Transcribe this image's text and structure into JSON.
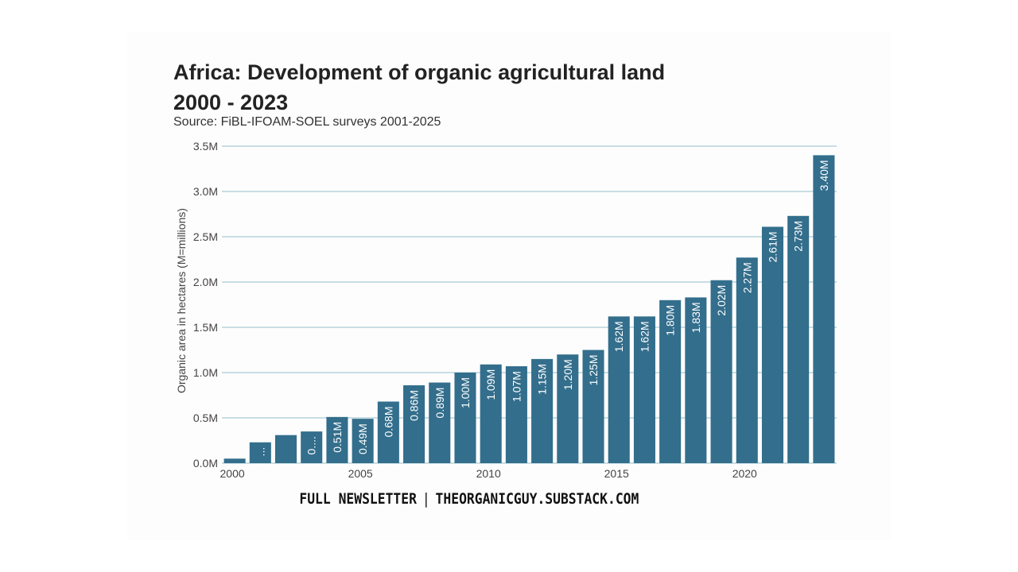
{
  "page": {
    "title_line1": "Africa: Development of organic agricultural land",
    "title_line2": "2000 - 2023",
    "subtitle": "Source: FiBL-IFOAM-SOEL surveys 2001-2025",
    "footer_left": "FULL NEWSLETTER",
    "footer_sep": "|",
    "footer_right": "THEORGANICGUY.SUBSTACK.COM"
  },
  "colors": {
    "bar": "#336e8c",
    "grid": "#a9cbd6",
    "axis_text": "#444444",
    "bar_label": "#ffffff"
  },
  "chart_data": {
    "type": "bar",
    "title": "Africa: Development of organic agricultural land 2000 - 2023",
    "subtitle": "Source: FiBL-IFOAM-SOEL surveys 2001-2025",
    "xlabel": "",
    "ylabel": "Organic area in hectares (M=millions)",
    "ylim": [
      0,
      3.5
    ],
    "yticks": [
      0,
      0.5,
      1.0,
      1.5,
      2.0,
      2.5,
      3.0,
      3.5
    ],
    "ytick_labels": [
      "0.0M",
      "0.5M",
      "1.0M",
      "1.5M",
      "2.0M",
      "2.5M",
      "3.0M",
      "3.5M"
    ],
    "xticks": [
      2000,
      2005,
      2010,
      2015,
      2020
    ],
    "xtick_labels": [
      "2000",
      "2005",
      "2010",
      "2015",
      "2020"
    ],
    "grid": true,
    "categories": [
      2000,
      2001,
      2002,
      2003,
      2004,
      2005,
      2006,
      2007,
      2008,
      2009,
      2010,
      2011,
      2012,
      2013,
      2014,
      2015,
      2016,
      2017,
      2018,
      2019,
      2020,
      2021,
      2022,
      2023
    ],
    "values": [
      0.05,
      0.23,
      0.31,
      0.35,
      0.51,
      0.49,
      0.68,
      0.86,
      0.89,
      1.0,
      1.09,
      1.07,
      1.15,
      1.2,
      1.25,
      1.62,
      1.62,
      1.8,
      1.83,
      2.02,
      2.27,
      2.61,
      2.73,
      3.4
    ],
    "labels": [
      "",
      "...",
      "",
      "0....",
      "0.51M",
      "0.49M",
      "0.68M",
      "0.86M",
      "0.89M",
      "1.00M",
      "1.09M",
      "1.07M",
      "1.15M",
      "1.20M",
      "1.25M",
      "1.62M",
      "1.62M",
      "1.80M",
      "1.83M",
      "2.02M",
      "2.27M",
      "2.61M",
      "2.73M",
      "3.40M"
    ]
  }
}
